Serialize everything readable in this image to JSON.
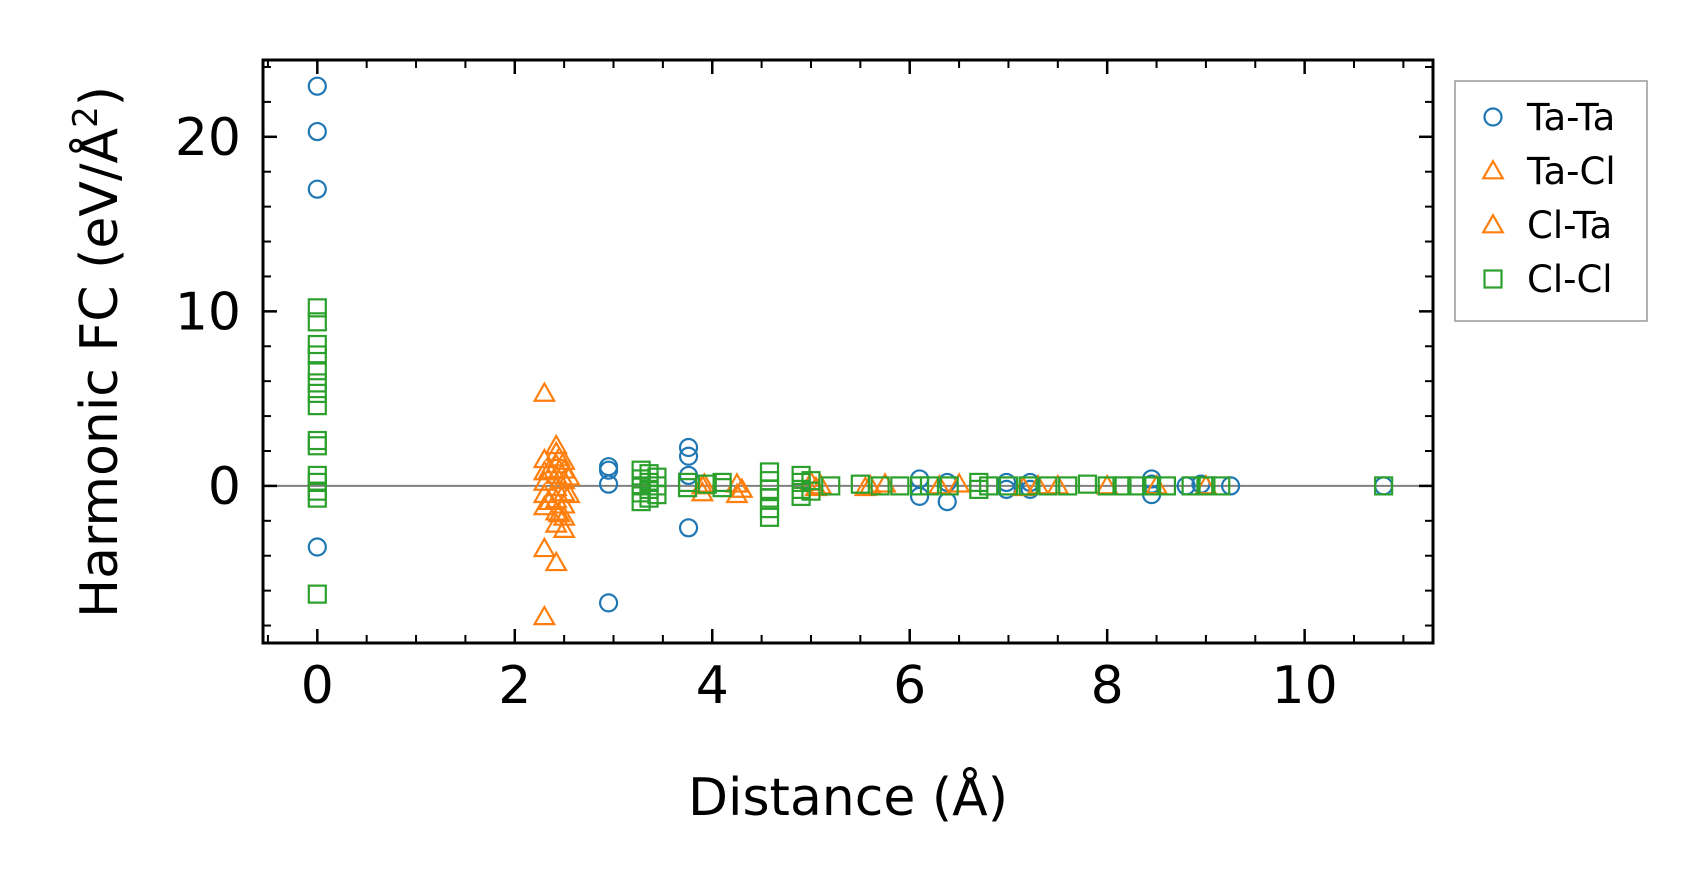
{
  "chart_data": {
    "type": "scatter",
    "xlabel": "Distance (Å)",
    "ylabel": "Harmonic FC (eV/Å",
    "ylabel_superscript": "2",
    "ylabel_close": ")",
    "xlim": [
      -0.55,
      11.3
    ],
    "ylim": [
      -9.0,
      24.4
    ],
    "x_ticks": [
      0,
      2,
      4,
      6,
      8,
      10
    ],
    "x_tick_labels": [
      "0",
      "2",
      "4",
      "6",
      "8",
      "10"
    ],
    "y_ticks": [
      0,
      10,
      20
    ],
    "y_tick_labels": [
      "0",
      "10",
      "20"
    ],
    "zero_line": true,
    "legend_position": "outside-right",
    "series": [
      {
        "name": "Ta-Ta",
        "marker": "circle",
        "color": "#1f77b4",
        "points": [
          [
            0,
            22.9
          ],
          [
            0,
            20.3
          ],
          [
            0,
            17.0
          ],
          [
            0,
            -3.5
          ],
          [
            2.95,
            1.1
          ],
          [
            2.95,
            0.9
          ],
          [
            2.95,
            0.1
          ],
          [
            2.95,
            -6.7
          ],
          [
            3.76,
            2.2
          ],
          [
            3.76,
            1.7
          ],
          [
            3.76,
            0.6
          ],
          [
            3.76,
            -2.4
          ],
          [
            6.1,
            0.4
          ],
          [
            6.1,
            -0.6
          ],
          [
            6.38,
            0.2
          ],
          [
            6.38,
            -0.9
          ],
          [
            6.98,
            0.2
          ],
          [
            6.98,
            -0.2
          ],
          [
            7.22,
            0.2
          ],
          [
            7.22,
            -0.2
          ],
          [
            8.45,
            0.4
          ],
          [
            8.45,
            0.1
          ],
          [
            8.45,
            -0.5
          ],
          [
            8.8,
            0.0
          ],
          [
            8.95,
            0.1
          ],
          [
            9.25,
            0.0
          ],
          [
            10.8,
            0.0
          ]
        ]
      },
      {
        "name": "Ta-Cl",
        "marker": "triangle",
        "color": "#ff7f0e",
        "points": [
          [
            2.3,
            5.3
          ],
          [
            2.3,
            1.5
          ],
          [
            2.3,
            0.8
          ],
          [
            2.3,
            0.2
          ],
          [
            2.3,
            -0.5
          ],
          [
            2.3,
            -1.2
          ],
          [
            2.3,
            -3.6
          ],
          [
            2.3,
            -7.5
          ],
          [
            2.42,
            2.3
          ],
          [
            2.42,
            1.9
          ],
          [
            2.42,
            1.2
          ],
          [
            2.42,
            0.6
          ],
          [
            2.42,
            -0.1
          ],
          [
            2.42,
            -0.8
          ],
          [
            2.42,
            -1.5
          ],
          [
            2.42,
            -2.2
          ],
          [
            2.42,
            -4.4
          ],
          [
            2.5,
            1.4
          ],
          [
            2.5,
            0.9
          ],
          [
            2.5,
            0.3
          ],
          [
            2.5,
            -0.4
          ],
          [
            2.5,
            -1.1
          ],
          [
            2.5,
            -1.8
          ],
          [
            2.5,
            -2.5
          ],
          [
            3.9,
            0.0
          ],
          [
            3.9,
            -0.4
          ],
          [
            4.25,
            0.1
          ],
          [
            4.25,
            -0.5
          ],
          [
            5.0,
            0.2
          ],
          [
            5.1,
            0.0
          ],
          [
            5.55,
            -0.1
          ],
          [
            5.75,
            0.1
          ],
          [
            6.3,
            0.0
          ],
          [
            7.15,
            -0.1
          ],
          [
            7.5,
            0.0
          ],
          [
            8.0,
            0.0
          ],
          [
            8.5,
            0.0
          ],
          [
            9.0,
            0.0
          ]
        ]
      },
      {
        "name": "Cl-Ta",
        "marker": "triangle",
        "color": "#ff7f0e",
        "points": [
          [
            2.35,
            0.9
          ],
          [
            2.35,
            -0.9
          ],
          [
            2.45,
            1.6
          ],
          [
            2.45,
            -1.6
          ],
          [
            2.55,
            0.5
          ],
          [
            2.55,
            -0.5
          ],
          [
            3.92,
            0.1
          ],
          [
            4.3,
            -0.2
          ],
          [
            5.05,
            -0.1
          ],
          [
            5.6,
            0.0
          ],
          [
            6.5,
            0.1
          ],
          [
            7.3,
            0.0
          ]
        ]
      },
      {
        "name": "Cl-Cl",
        "marker": "square",
        "color": "#2ca02c",
        "points": [
          [
            0,
            10.2
          ],
          [
            0,
            9.4
          ],
          [
            0,
            8.1
          ],
          [
            0,
            7.5
          ],
          [
            0,
            6.6
          ],
          [
            0,
            5.9
          ],
          [
            0,
            5.3
          ],
          [
            0,
            4.6
          ],
          [
            0,
            2.6
          ],
          [
            0,
            2.3
          ],
          [
            0,
            0.6
          ],
          [
            0,
            0.2
          ],
          [
            0,
            -0.3
          ],
          [
            0,
            -0.7
          ],
          [
            0,
            -6.2
          ],
          [
            3.28,
            0.9
          ],
          [
            3.28,
            0.4
          ],
          [
            3.28,
            0.0
          ],
          [
            3.28,
            -0.4
          ],
          [
            3.28,
            -0.9
          ],
          [
            3.36,
            0.7
          ],
          [
            3.36,
            0.2
          ],
          [
            3.36,
            -0.2
          ],
          [
            3.36,
            -0.7
          ],
          [
            3.44,
            0.5
          ],
          [
            3.44,
            0.0
          ],
          [
            3.44,
            -0.5
          ],
          [
            3.75,
            0.2
          ],
          [
            3.75,
            -0.1
          ],
          [
            3.95,
            0.1
          ],
          [
            4.1,
            0.2
          ],
          [
            4.1,
            -0.1
          ],
          [
            4.58,
            0.8
          ],
          [
            4.58,
            0.3
          ],
          [
            4.58,
            -0.2
          ],
          [
            4.58,
            -0.7
          ],
          [
            4.58,
            -1.3
          ],
          [
            4.58,
            -1.8
          ],
          [
            4.9,
            0.6
          ],
          [
            4.9,
            0.2
          ],
          [
            4.9,
            -0.2
          ],
          [
            4.9,
            -0.6
          ],
          [
            5.0,
            0.3
          ],
          [
            5.0,
            -0.3
          ],
          [
            5.2,
            0.0
          ],
          [
            5.5,
            0.1
          ],
          [
            5.7,
            0.0
          ],
          [
            5.9,
            0.0
          ],
          [
            6.1,
            0.0
          ],
          [
            6.2,
            0.0
          ],
          [
            6.4,
            0.0
          ],
          [
            6.7,
            0.2
          ],
          [
            6.7,
            -0.2
          ],
          [
            6.8,
            0.0
          ],
          [
            7.0,
            0.0
          ],
          [
            7.2,
            0.0
          ],
          [
            7.4,
            0.0
          ],
          [
            7.6,
            0.0
          ],
          [
            7.8,
            0.1
          ],
          [
            8.0,
            0.0
          ],
          [
            8.15,
            0.0
          ],
          [
            8.3,
            0.0
          ],
          [
            8.45,
            0.0
          ],
          [
            8.6,
            0.0
          ],
          [
            8.85,
            0.0
          ],
          [
            9.0,
            0.0
          ],
          [
            9.15,
            0.0
          ],
          [
            10.8,
            0.0
          ]
        ]
      }
    ]
  }
}
